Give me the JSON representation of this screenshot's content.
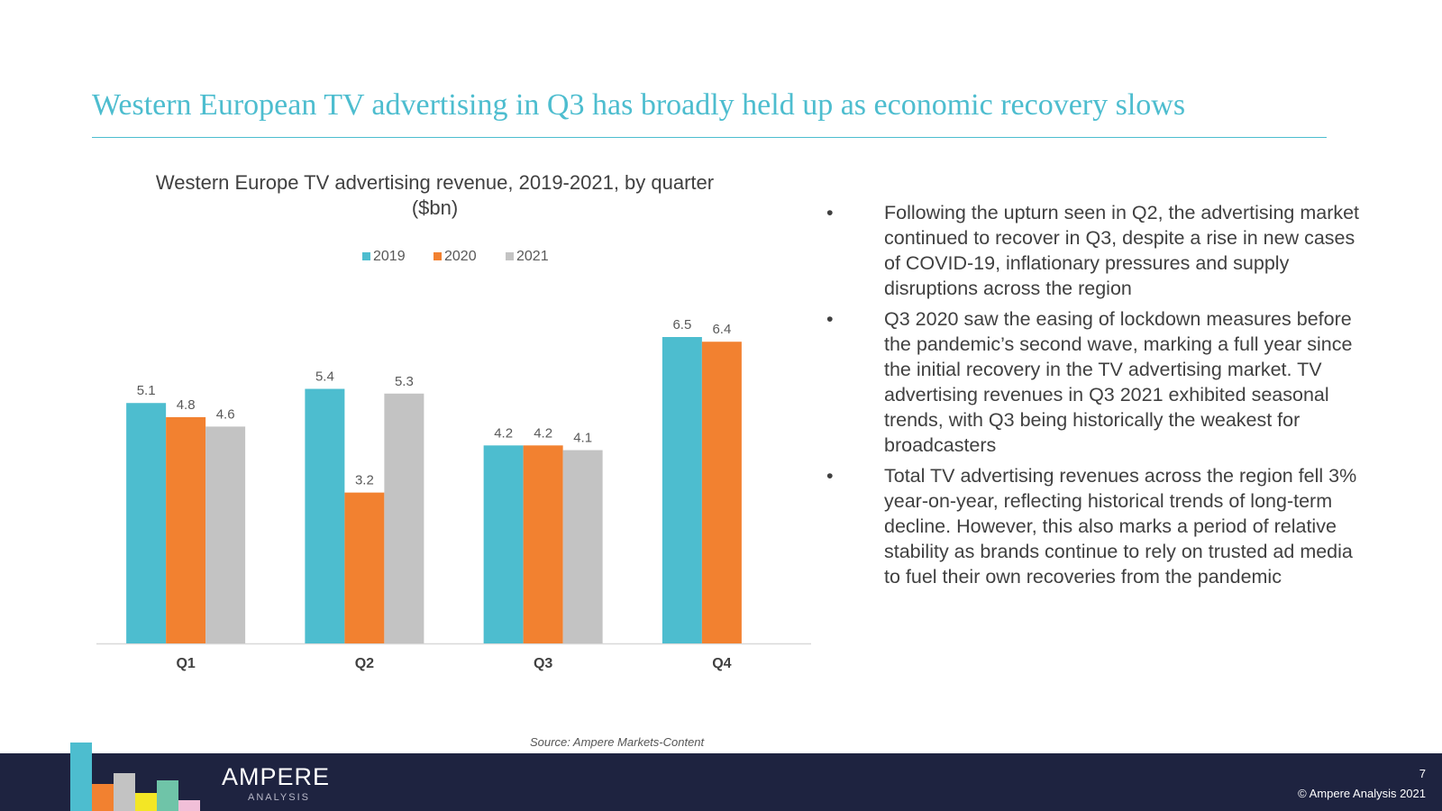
{
  "slide": {
    "title": "Western European TV advertising in Q3 has broadly held up as economic recovery slows",
    "source": "Source: Ampere Markets-Content",
    "page_number": "7",
    "copyright": "© Ampere Analysis 2021",
    "logo_main": "AMPERE",
    "logo_sub": "ANALYSIS",
    "bullet_glyph": "•",
    "bullets": [
      "Following the upturn seen in Q2, the advertising market continued to recover in Q3, despite a rise in new cases of COVID-19, inflationary pressures and supply disruptions across the region",
      "Q3 2020 saw the easing of lockdown measures before the pandemic’s second wave, marking a full year since the initial recovery in the TV advertising market. TV advertising revenues in Q3 2021 exhibited seasonal trends, with Q3 being historically the weakest for broadcasters",
      "Total TV advertising revenues across the region fell 3% year-on-year, reflecting historical trends of long-term decline. However, this also marks a period of relative stability as brands continue to rely on trusted ad media to fuel their own recoveries from the pandemic"
    ]
  },
  "colors": {
    "accent": "#4dbdcf",
    "footer": "#1e2340",
    "logo_blocks": [
      "#4dbdcf",
      "#f28130",
      "#c3c3c3",
      "#f3e625",
      "#6fc4a8",
      "#f1bfd8"
    ]
  },
  "chart_data": {
    "type": "bar",
    "title": "Western Europe TV advertising revenue, 2019-2021, by quarter ($bn)",
    "categories": [
      "Q1",
      "Q2",
      "Q3",
      "Q4"
    ],
    "series": [
      {
        "name": "2019",
        "color": "#4dbdcf",
        "values": [
          5.1,
          5.4,
          4.2,
          6.5
        ]
      },
      {
        "name": "2020",
        "color": "#f28130",
        "values": [
          4.8,
          3.2,
          4.2,
          6.4
        ]
      },
      {
        "name": "2021",
        "color": "#c3c3c3",
        "values": [
          4.6,
          5.3,
          4.1,
          null
        ]
      }
    ],
    "ylim": [
      0,
      7
    ],
    "grid": false,
    "legend": "top-center",
    "xlabel": "",
    "ylabel": ""
  }
}
